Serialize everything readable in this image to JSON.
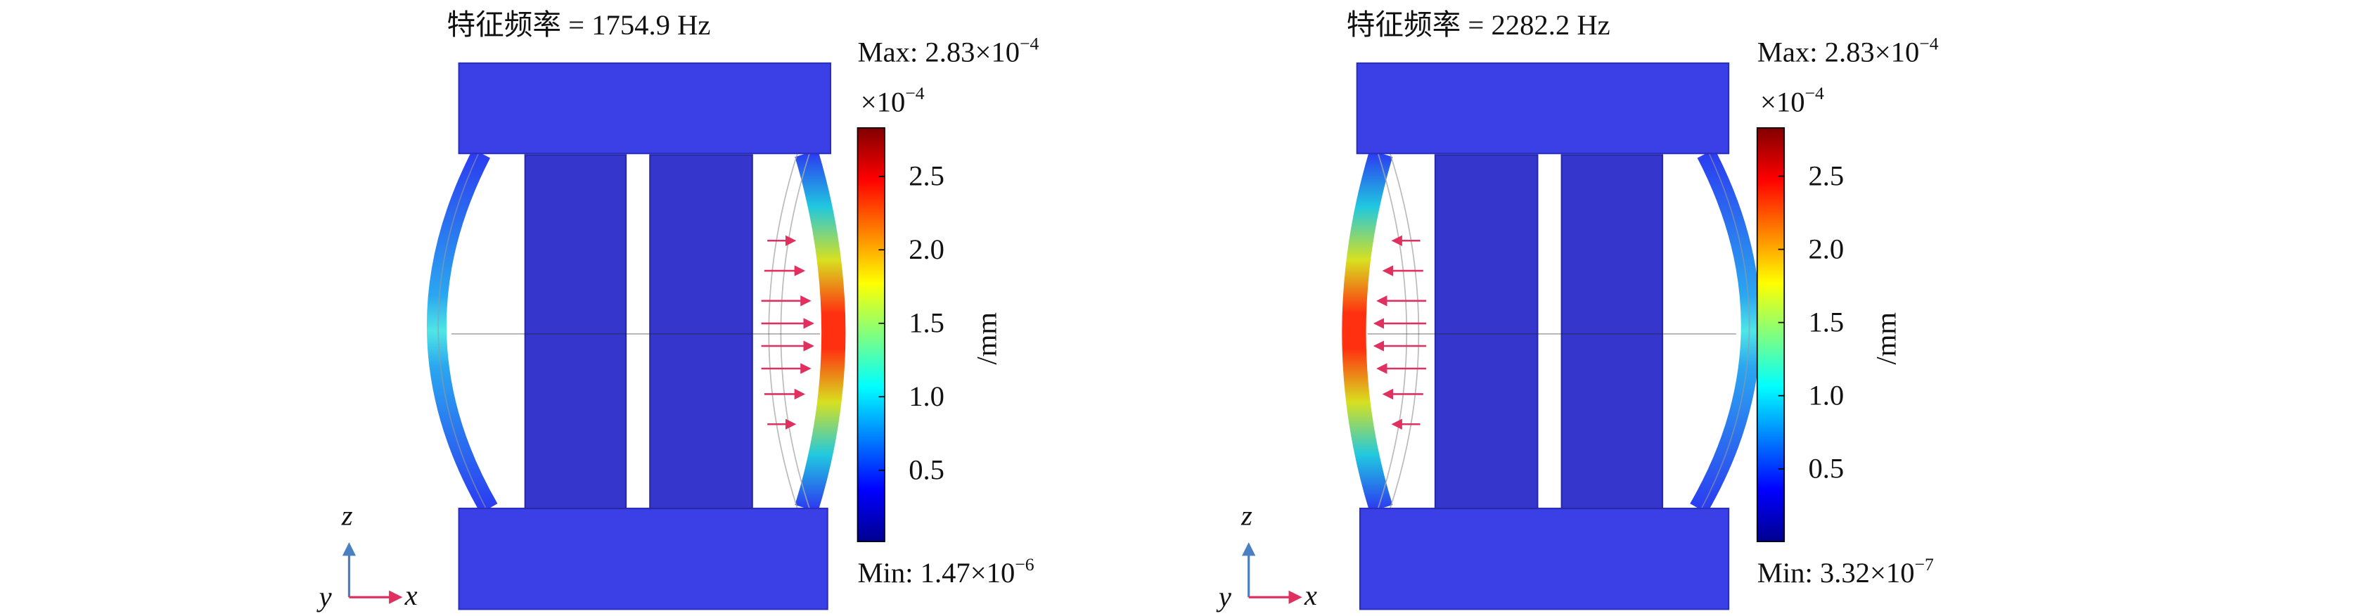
{
  "panels": [
    {
      "title": "特征频率 = 1754.9 Hz",
      "max_label": "Max: 2.83×10",
      "max_exponent": "−4",
      "min_label": "Min: 1.47×10",
      "min_exponent": "−6",
      "scale_label": "×10",
      "scale_exponent": "−4",
      "unit": "/mm",
      "colorbar_lim": [
        0.0147,
        2.83
      ],
      "colorbar_ticks": [
        0.5,
        {
          "value": 1.0,
          "label": "1.0"
        },
        1.5,
        {
          "value": 2.0,
          "label": "2.0"
        },
        2.5
      ],
      "axes": {
        "z": "z",
        "y": "y",
        "x": "x"
      }
    },
    {
      "title": "特征频率 = 2282.2 Hz",
      "max_label": "Max: 2.83×10",
      "max_exponent": "−4",
      "min_label": "Min: 3.32×10",
      "min_exponent": "−7",
      "scale_label": "×10",
      "scale_exponent": "−4",
      "unit": "/mm",
      "colorbar_lim": [
        0.00332,
        2.83
      ],
      "colorbar_ticks": [
        0.5,
        {
          "value": 1.0,
          "label": "1.0"
        },
        1.5,
        {
          "value": 2.0,
          "label": "2.0"
        },
        2.5
      ],
      "axes": {
        "z": "z",
        "y": "y",
        "x": "x"
      }
    }
  ]
}
